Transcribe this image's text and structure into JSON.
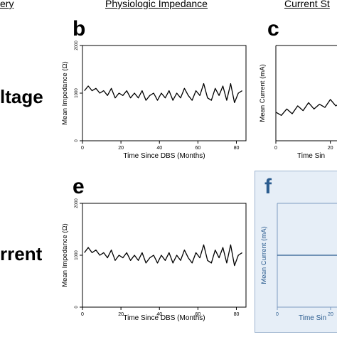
{
  "headers": {
    "left": "ery",
    "middle": "Physiologic Impedance",
    "right": "Current St"
  },
  "row_labels": {
    "top": "ltage",
    "bottom": "rrent"
  },
  "panels": {
    "b": "b",
    "c": "c",
    "e": "e",
    "f": "f"
  },
  "colors": {
    "line": "#000000",
    "f_line": "#2b5c8f",
    "f_bg": "#e6eef7"
  },
  "chart_data": [
    {
      "panel": "b",
      "type": "line",
      "xlabel": "Time Since DBS (Months)",
      "ylabel": "Mean Impedance (Ω)",
      "xlim": [
        0,
        85
      ],
      "ylim": [
        0,
        2000
      ],
      "xticks": [
        "0",
        "20",
        "40",
        "60",
        "80"
      ],
      "yticks": [
        "0",
        "1000",
        "2000"
      ],
      "x": [
        1,
        3,
        5,
        7,
        9,
        11,
        13,
        15,
        17,
        19,
        21,
        23,
        25,
        27,
        29,
        31,
        33,
        35,
        37,
        39,
        41,
        43,
        45,
        47,
        49,
        51,
        53,
        55,
        57,
        59,
        61,
        63,
        65,
        67,
        69,
        71,
        73,
        75,
        77,
        79,
        81,
        83
      ],
      "y": [
        1050,
        1150,
        1050,
        1100,
        1000,
        1050,
        950,
        1100,
        900,
        1000,
        950,
        1050,
        900,
        1000,
        900,
        1050,
        850,
        950,
        1000,
        850,
        1000,
        900,
        1050,
        850,
        1000,
        900,
        1100,
        950,
        850,
        1050,
        950,
        1200,
        900,
        850,
        1100,
        950,
        1150,
        850,
        1200,
        800,
        1000,
        1050
      ]
    },
    {
      "panel": "c",
      "type": "line",
      "xlabel": "Time Sin",
      "ylabel": "Mean Current (mA)",
      "xticks": [
        "0",
        "20"
      ],
      "x": [
        0,
        2,
        4,
        6,
        8,
        10,
        12,
        14,
        16,
        18,
        20,
        22,
        24
      ],
      "y": [
        0.9,
        0.8,
        1.0,
        0.85,
        1.1,
        0.95,
        1.2,
        1.0,
        1.15,
        1.05,
        1.3,
        1.1,
        1.2
      ]
    },
    {
      "panel": "e",
      "type": "line",
      "xlabel": "Time Since DBS (Months)",
      "ylabel": "Mean Impedance (Ω)",
      "xlim": [
        0,
        85
      ],
      "ylim": [
        0,
        2000
      ],
      "xticks": [
        "0",
        "20",
        "40",
        "60",
        "80"
      ],
      "yticks": [
        "0",
        "1000",
        "2000"
      ],
      "x": [
        1,
        3,
        5,
        7,
        9,
        11,
        13,
        15,
        17,
        19,
        21,
        23,
        25,
        27,
        29,
        31,
        33,
        35,
        37,
        39,
        41,
        43,
        45,
        47,
        49,
        51,
        53,
        55,
        57,
        59,
        61,
        63,
        65,
        67,
        69,
        71,
        73,
        75,
        77,
        79,
        81,
        83
      ],
      "y": [
        1050,
        1150,
        1050,
        1100,
        1000,
        1050,
        950,
        1100,
        900,
        1000,
        950,
        1050,
        900,
        1000,
        900,
        1050,
        850,
        950,
        1000,
        850,
        1000,
        900,
        1050,
        850,
        1000,
        900,
        1100,
        950,
        850,
        1050,
        950,
        1200,
        900,
        850,
        1100,
        950,
        1150,
        850,
        1200,
        800,
        1000,
        1050
      ]
    },
    {
      "panel": "f",
      "type": "line",
      "xlabel": "Time Sin",
      "ylabel": "Mean Current (mA)",
      "xticks": [
        "0",
        "20"
      ],
      "x": [
        0,
        24
      ],
      "y": [
        1,
        1
      ]
    }
  ]
}
